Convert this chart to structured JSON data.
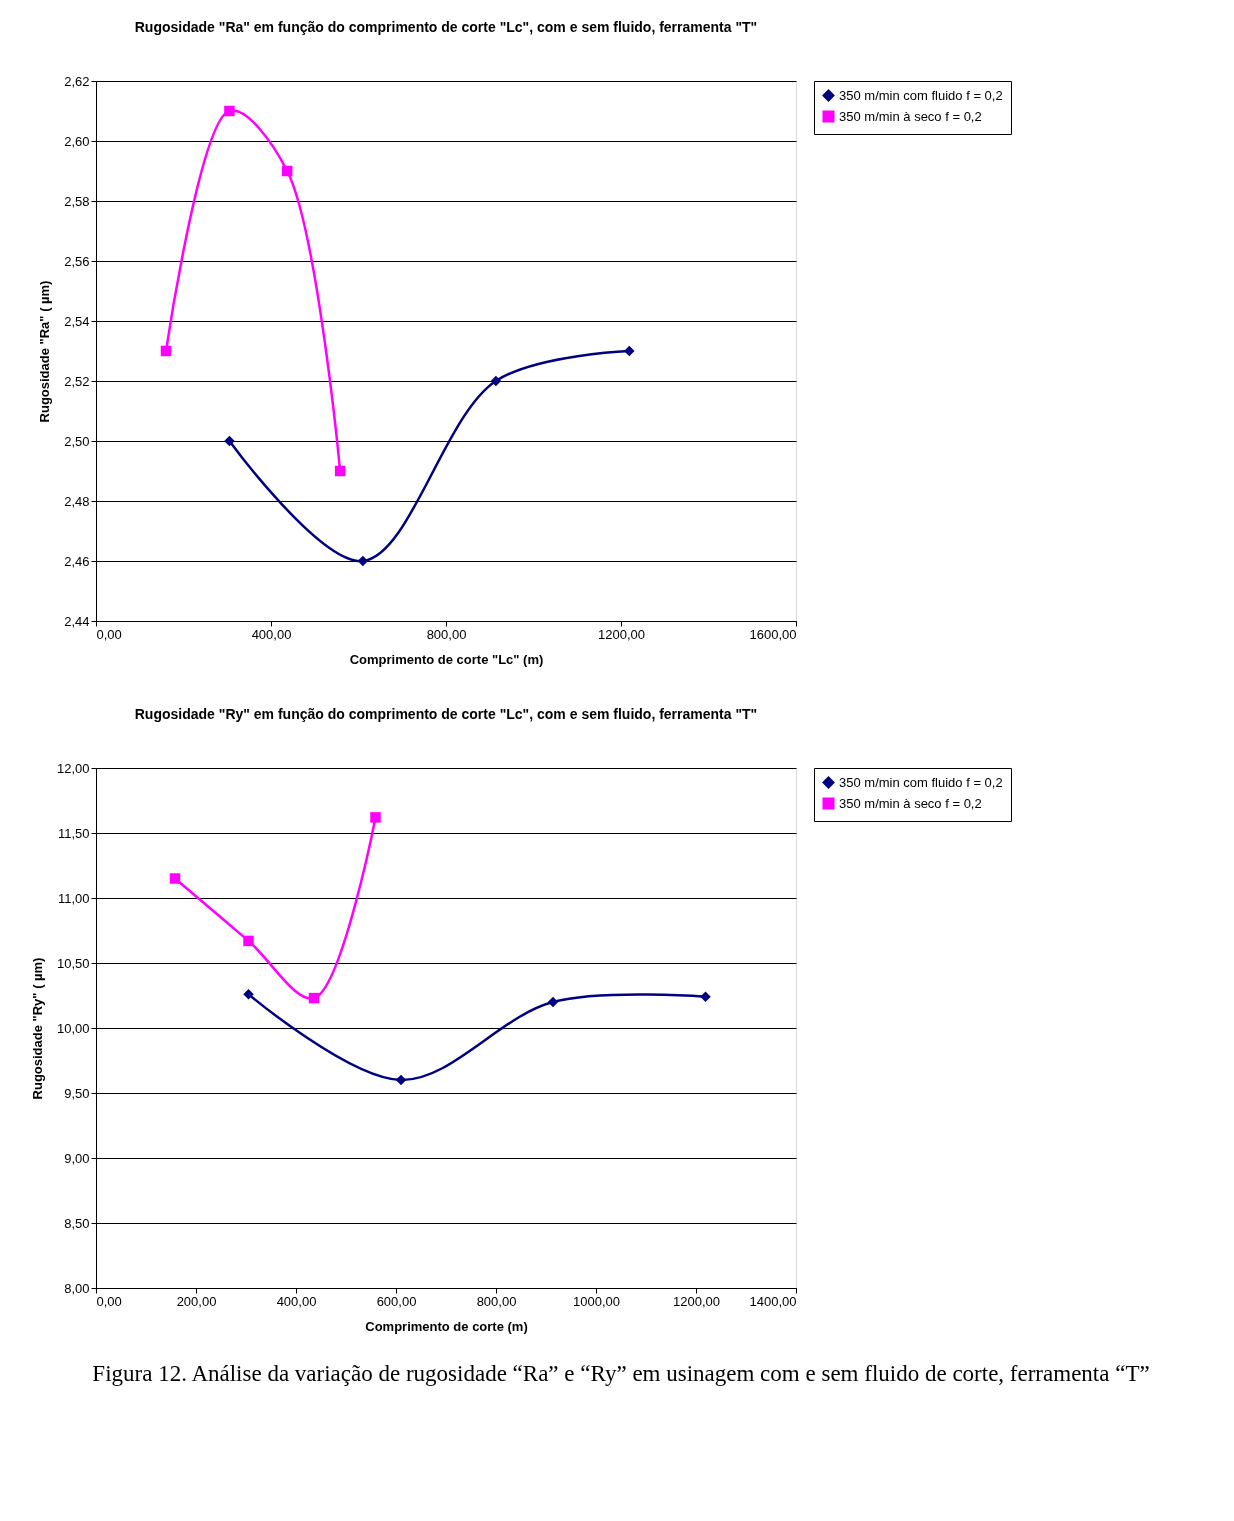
{
  "chart_data": [
    {
      "type": "line",
      "title": "Rugosidade \"Ra\" em função do comprimento de corte \"Lc\", com e sem fluido, ferramenta \"T\"",
      "xlabel": "Comprimento de corte \"Lc\" (m)",
      "ylabel": "Rugosidade \"Ra\" ( µm)",
      "xlim": [
        0,
        1600
      ],
      "xticks": [
        {
          "value": 0,
          "label": "0,00"
        },
        {
          "value": 400,
          "label": "400,00"
        },
        {
          "value": 800,
          "label": "800,00"
        },
        {
          "value": 1200,
          "label": "1200,00"
        },
        {
          "value": 1600,
          "label": "1600,00"
        }
      ],
      "ylim": [
        2.44,
        2.62
      ],
      "yticks": [
        {
          "value": 2.44,
          "label": "2,44"
        },
        {
          "value": 2.46,
          "label": "2,46"
        },
        {
          "value": 2.48,
          "label": "2,48"
        },
        {
          "value": 2.5,
          "label": "2,50"
        },
        {
          "value": 2.52,
          "label": "2,52"
        },
        {
          "value": 2.54,
          "label": "2,54"
        },
        {
          "value": 2.56,
          "label": "2,56"
        },
        {
          "value": 2.58,
          "label": "2,58"
        },
        {
          "value": 2.6,
          "label": "2,60"
        },
        {
          "value": 2.62,
          "label": "2,62"
        }
      ],
      "grid": "y",
      "legend": "right",
      "line_style": "solid",
      "series": [
        {
          "name": "350 m/min com fluido f = 0,2",
          "color": "#000080",
          "marker": "diamond",
          "x": [
            305,
            610,
            914,
            1219
          ],
          "values": [
            2.5,
            2.46,
            2.52,
            2.53
          ]
        },
        {
          "name": "350 m/min à seco f = 0,2",
          "color": "#ff00ff",
          "marker": "square",
          "x": [
            160,
            305,
            437,
            558
          ],
          "values": [
            2.53,
            2.61,
            2.59,
            2.49
          ]
        }
      ]
    },
    {
      "type": "line",
      "title": "Rugosidade \"Ry\" em função do comprimento de corte \"Lc\", com e sem fluido, ferramenta \"T\"",
      "xlabel": "Comprimento de corte (m)",
      "ylabel": "Rugosidade \"Ry\" ( µm)",
      "xlim": [
        0,
        1400
      ],
      "xticks": [
        {
          "value": 0,
          "label": "0,00"
        },
        {
          "value": 200,
          "label": "200,00"
        },
        {
          "value": 400,
          "label": "400,00"
        },
        {
          "value": 600,
          "label": "600,00"
        },
        {
          "value": 800,
          "label": "800,00"
        },
        {
          "value": 1000,
          "label": "1000,00"
        },
        {
          "value": 1200,
          "label": "1200,00"
        },
        {
          "value": 1400,
          "label": "1400,00"
        }
      ],
      "ylim": [
        8,
        12
      ],
      "yticks": [
        {
          "value": 8,
          "label": "8,00"
        },
        {
          "value": 8.5,
          "label": "8,50"
        },
        {
          "value": 9,
          "label": "9,00"
        },
        {
          "value": 9.5,
          "label": "9,50"
        },
        {
          "value": 10,
          "label": "10,00"
        },
        {
          "value": 10.5,
          "label": "10,50"
        },
        {
          "value": 11,
          "label": "11,00"
        },
        {
          "value": 11.5,
          "label": "11,50"
        },
        {
          "value": 12,
          "label": "12,00"
        }
      ],
      "grid": "y",
      "legend": "right",
      "line_style": "solid",
      "annotations": [
        "Figura 12. Análise da variação de rugosidade “Ra” e “Ry” em usinagem com e sem fluido de corte, ferramenta “T”"
      ],
      "series": [
        {
          "name": "350 m/min com fluido f = 0,2",
          "color": "#000080",
          "marker": "diamond",
          "x": [
            305,
            610,
            914,
            1219
          ],
          "values": [
            10.26,
            9.6,
            10.2,
            10.24
          ]
        },
        {
          "name": "350 m/min à seco f = 0,2",
          "color": "#ff00ff",
          "marker": "square",
          "x": [
            158,
            305,
            436,
            559
          ],
          "values": [
            11.15,
            10.67,
            10.23,
            11.62
          ]
        }
      ]
    }
  ]
}
